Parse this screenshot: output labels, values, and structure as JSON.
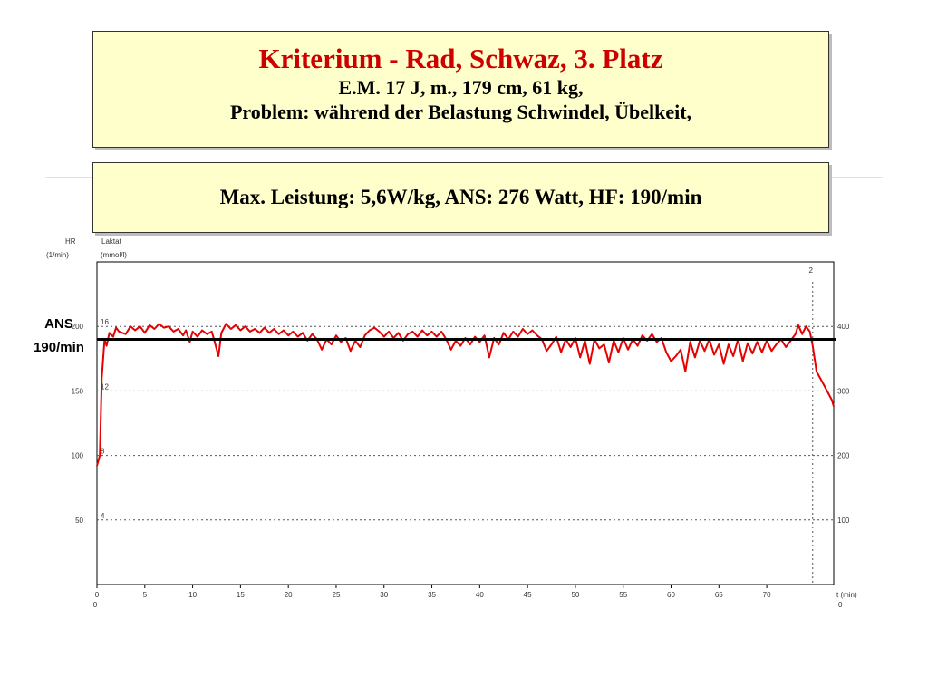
{
  "header": {
    "title": "Kriterium - Rad, Schwaz, 3. Platz",
    "line2": "E.M. 17 J, m., 179 cm, 61 kg,",
    "line3": "Problem: während der Belastung Schwindel, Übelkeit,"
  },
  "summary": {
    "text": "Max. Leistung: 5,6W/kg, ANS: 276 Watt, HF: 190/min"
  },
  "ans": {
    "label1": "ANS",
    "label2": "190/min",
    "value": 190
  },
  "chart_data": {
    "type": "line",
    "axes": {
      "hr": {
        "label1": "HR",
        "label2": "(1/min)",
        "range": [
          0,
          250
        ],
        "ticks": [
          50,
          100,
          150,
          200
        ]
      },
      "lactate": {
        "label1": "Laktat",
        "label2": "(mmol/l)",
        "range": [
          0,
          20
        ],
        "ticks": [
          4,
          8,
          12,
          16
        ]
      },
      "power": {
        "range": [
          0,
          500
        ],
        "ticks": [
          100,
          200,
          300,
          400
        ]
      },
      "time": {
        "label": "t (min)",
        "range": [
          0,
          77
        ],
        "ticks": [
          0,
          5,
          10,
          15,
          20,
          25,
          30,
          35,
          40,
          45,
          50,
          55,
          60,
          65,
          70
        ],
        "origin_label": "0",
        "right_origin_label": "0"
      }
    },
    "gridlines_hr": [
      50,
      100,
      150,
      200
    ],
    "marker": {
      "label": "2",
      "x": 74.8
    },
    "reference_line": {
      "y": 190
    },
    "series": [
      {
        "color": "#e60000",
        "points": [
          [
            0.0,
            92
          ],
          [
            0.3,
            100
          ],
          [
            0.5,
            160
          ],
          [
            0.8,
            190
          ],
          [
            1.0,
            185
          ],
          [
            1.3,
            195
          ],
          [
            1.7,
            192
          ],
          [
            2.0,
            199
          ],
          [
            2.3,
            196
          ],
          [
            3.0,
            194
          ],
          [
            3.5,
            200
          ],
          [
            4.0,
            197
          ],
          [
            4.5,
            200
          ],
          [
            5.0,
            195
          ],
          [
            5.5,
            201
          ],
          [
            6.0,
            198
          ],
          [
            6.5,
            202
          ],
          [
            7.0,
            199
          ],
          [
            7.5,
            200
          ],
          [
            8.0,
            196
          ],
          [
            8.5,
            198
          ],
          [
            9.0,
            193
          ],
          [
            9.3,
            197
          ],
          [
            9.7,
            188
          ],
          [
            10.0,
            196
          ],
          [
            10.5,
            192
          ],
          [
            11.0,
            197
          ],
          [
            11.5,
            194
          ],
          [
            12.0,
            196
          ],
          [
            12.3,
            188
          ],
          [
            12.7,
            177
          ],
          [
            13.0,
            195
          ],
          [
            13.5,
            202
          ],
          [
            14.0,
            198
          ],
          [
            14.5,
            201
          ],
          [
            15.0,
            197
          ],
          [
            15.5,
            200
          ],
          [
            16.0,
            196
          ],
          [
            16.5,
            198
          ],
          [
            17.0,
            195
          ],
          [
            17.5,
            199
          ],
          [
            18.0,
            195
          ],
          [
            18.5,
            198
          ],
          [
            19.0,
            194
          ],
          [
            19.5,
            197
          ],
          [
            20.0,
            193
          ],
          [
            20.5,
            196
          ],
          [
            21.0,
            192
          ],
          [
            21.5,
            195
          ],
          [
            22.0,
            189
          ],
          [
            22.5,
            194
          ],
          [
            23.0,
            190
          ],
          [
            23.5,
            182
          ],
          [
            24.0,
            190
          ],
          [
            24.5,
            186
          ],
          [
            25.0,
            193
          ],
          [
            25.5,
            188
          ],
          [
            26.0,
            191
          ],
          [
            26.5,
            181
          ],
          [
            27.0,
            189
          ],
          [
            27.5,
            184
          ],
          [
            28.0,
            193
          ],
          [
            28.5,
            197
          ],
          [
            29.0,
            199
          ],
          [
            29.5,
            196
          ],
          [
            30.0,
            192
          ],
          [
            30.5,
            196
          ],
          [
            31.0,
            191
          ],
          [
            31.5,
            195
          ],
          [
            32.0,
            189
          ],
          [
            32.5,
            194
          ],
          [
            33.0,
            196
          ],
          [
            33.5,
            192
          ],
          [
            34.0,
            197
          ],
          [
            34.5,
            193
          ],
          [
            35.0,
            196
          ],
          [
            35.5,
            192
          ],
          [
            36.0,
            196
          ],
          [
            36.5,
            190
          ],
          [
            37.0,
            182
          ],
          [
            37.5,
            189
          ],
          [
            38.0,
            185
          ],
          [
            38.5,
            191
          ],
          [
            39.0,
            186
          ],
          [
            39.5,
            192
          ],
          [
            40.0,
            188
          ],
          [
            40.5,
            193
          ],
          [
            41.0,
            176
          ],
          [
            41.5,
            191
          ],
          [
            42.0,
            186
          ],
          [
            42.5,
            195
          ],
          [
            43.0,
            190
          ],
          [
            43.5,
            196
          ],
          [
            44.0,
            192
          ],
          [
            44.5,
            198
          ],
          [
            45.0,
            194
          ],
          [
            45.5,
            197
          ],
          [
            46.0,
            193
          ],
          [
            46.5,
            190
          ],
          [
            47.0,
            181
          ],
          [
            47.5,
            186
          ],
          [
            48.0,
            192
          ],
          [
            48.5,
            180
          ],
          [
            49.0,
            190
          ],
          [
            49.5,
            184
          ],
          [
            50.0,
            191
          ],
          [
            50.5,
            176
          ],
          [
            51.0,
            189
          ],
          [
            51.5,
            171
          ],
          [
            52.0,
            190
          ],
          [
            52.5,
            183
          ],
          [
            53.0,
            186
          ],
          [
            53.5,
            172
          ],
          [
            54.0,
            189
          ],
          [
            54.5,
            180
          ],
          [
            55.0,
            191
          ],
          [
            55.5,
            182
          ],
          [
            56.0,
            190
          ],
          [
            56.5,
            185
          ],
          [
            57.0,
            193
          ],
          [
            57.5,
            189
          ],
          [
            58.0,
            194
          ],
          [
            58.5,
            188
          ],
          [
            59.0,
            191
          ],
          [
            59.5,
            180
          ],
          [
            60.0,
            173
          ],
          [
            60.5,
            177
          ],
          [
            61.0,
            182
          ],
          [
            61.5,
            165
          ],
          [
            62.0,
            188
          ],
          [
            62.5,
            176
          ],
          [
            63.0,
            189
          ],
          [
            63.5,
            181
          ],
          [
            64.0,
            190
          ],
          [
            64.5,
            178
          ],
          [
            65.0,
            186
          ],
          [
            65.5,
            171
          ],
          [
            66.0,
            186
          ],
          [
            66.5,
            177
          ],
          [
            67.0,
            190
          ],
          [
            67.5,
            173
          ],
          [
            68.0,
            187
          ],
          [
            68.5,
            179
          ],
          [
            69.0,
            188
          ],
          [
            69.5,
            180
          ],
          [
            70.0,
            189
          ],
          [
            70.5,
            181
          ],
          [
            71.0,
            186
          ],
          [
            71.5,
            190
          ],
          [
            72.0,
            184
          ],
          [
            72.5,
            189
          ],
          [
            73.0,
            194
          ],
          [
            73.3,
            201
          ],
          [
            73.7,
            194
          ],
          [
            74.1,
            200
          ],
          [
            74.5,
            196
          ],
          [
            74.8,
            185
          ],
          [
            75.2,
            165
          ],
          [
            75.8,
            157
          ],
          [
            76.3,
            150
          ],
          [
            76.8,
            143
          ],
          [
            77.0,
            138
          ]
        ]
      }
    ]
  }
}
